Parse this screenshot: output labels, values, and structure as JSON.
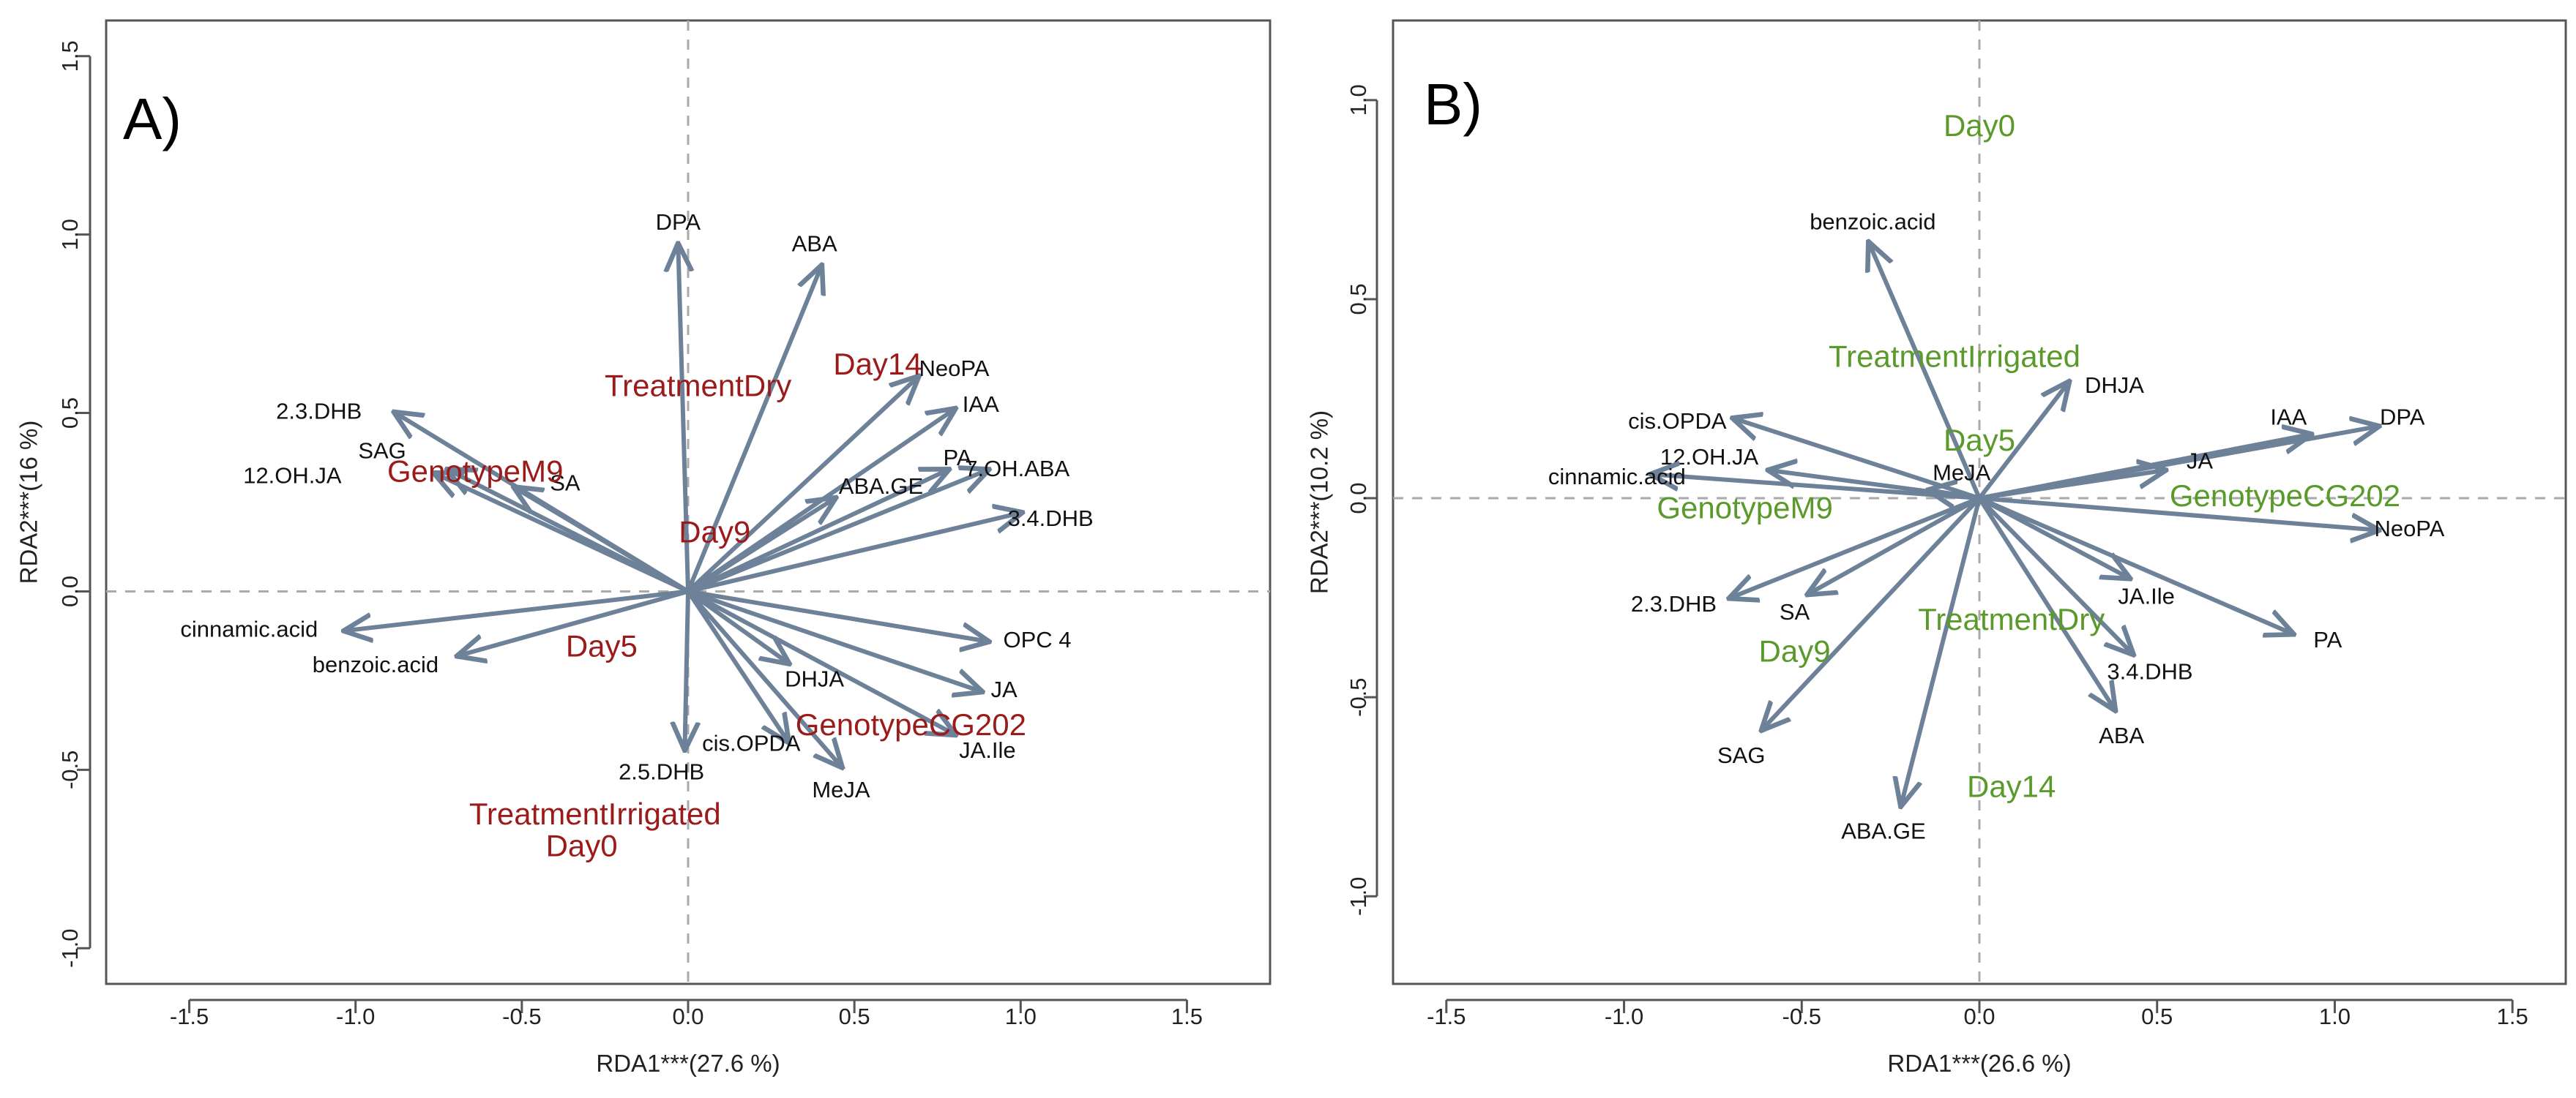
{
  "chart_data": [
    {
      "type": "biplot",
      "panel_label": "A)",
      "xlabel": "RDA1***(27.6 %)",
      "ylabel": "RDA2***(16 %)",
      "xlim": [
        -1.75,
        1.75
      ],
      "ylim": [
        -1.1,
        1.6
      ],
      "xticks": [
        -1.5,
        -1.0,
        -0.5,
        0.0,
        0.5,
        1.0,
        1.5
      ],
      "xtick_labels": [
        "-1.5",
        "-1.0",
        "-0.5",
        "0.0",
        "0.5",
        "1.0",
        "1.5"
      ],
      "yticks": [
        -1.0,
        -0.5,
        0.0,
        0.5,
        1.0,
        1.5
      ],
      "ytick_labels": [
        "-1.0",
        "-0.5",
        "0.0",
        "0.5",
        "1.0",
        "1.5"
      ],
      "factor_color": "#9b1b1b",
      "arrow_color": "#6d8199",
      "arrows": [
        {
          "name": "DPA",
          "x": -0.03,
          "y": 0.97,
          "lx": -0.03,
          "ly": 1.03
        },
        {
          "name": "ABA",
          "x": 0.4,
          "y": 0.91,
          "lx": 0.38,
          "ly": 0.97
        },
        {
          "name": "NeoPA",
          "x": 0.69,
          "y": 0.6,
          "lx": 0.8,
          "ly": 0.62
        },
        {
          "name": "IAA",
          "x": 0.8,
          "y": 0.51,
          "lx": 0.88,
          "ly": 0.52
        },
        {
          "name": "PA",
          "x": 0.78,
          "y": 0.34,
          "lx": 0.81,
          "ly": 0.37
        },
        {
          "name": "7.OH.ABA",
          "x": 0.9,
          "y": 0.34,
          "lx": 0.99,
          "ly": 0.34
        },
        {
          "name": "ABA.GE",
          "x": 0.44,
          "y": 0.26,
          "lx": 0.58,
          "ly": 0.29
        },
        {
          "name": "3.4.DHB",
          "x": 1.0,
          "y": 0.22,
          "lx": 1.09,
          "ly": 0.2
        },
        {
          "name": "2.3.DHB",
          "x": -0.88,
          "y": 0.5,
          "lx": -1.11,
          "ly": 0.5
        },
        {
          "name": "SAG",
          "x": -0.72,
          "y": 0.34,
          "lx": -0.92,
          "ly": 0.39
        },
        {
          "name": "SA",
          "x": -0.52,
          "y": 0.29,
          "lx": -0.37,
          "ly": 0.3
        },
        {
          "name": "12.OH.JA",
          "x": -0.76,
          "y": 0.33,
          "lx": -1.19,
          "ly": 0.32
        },
        {
          "name": "cinnamic.acid",
          "x": -1.03,
          "y": -0.11,
          "lx": -1.32,
          "ly": -0.11
        },
        {
          "name": "benzoic.acid",
          "x": -0.69,
          "y": -0.18,
          "lx": -0.94,
          "ly": -0.21
        },
        {
          "name": "OPC 4",
          "x": 0.9,
          "y": -0.14,
          "lx": 1.05,
          "ly": -0.14
        },
        {
          "name": "JA",
          "x": 0.88,
          "y": -0.28,
          "lx": 0.95,
          "ly": -0.28
        },
        {
          "name": "JA.Ile",
          "x": 0.8,
          "y": -0.4,
          "lx": 0.9,
          "ly": -0.45
        },
        {
          "name": "DHJA",
          "x": 0.3,
          "y": -0.2,
          "lx": 0.38,
          "ly": -0.25
        },
        {
          "name": "MeJA",
          "x": 0.46,
          "y": -0.49,
          "lx": 0.46,
          "ly": -0.56
        },
        {
          "name": "cis.OPDA",
          "x": 0.3,
          "y": -0.42,
          "lx": 0.19,
          "ly": -0.43
        },
        {
          "name": "2.5.DHB",
          "x": -0.01,
          "y": -0.44,
          "lx": -0.08,
          "ly": -0.51
        }
      ],
      "factors": [
        {
          "name": "TreatmentDry",
          "x": 0.03,
          "y": 0.57
        },
        {
          "name": "Day14",
          "x": 0.57,
          "y": 0.63
        },
        {
          "name": "GenotypeM9",
          "x": -0.64,
          "y": 0.33
        },
        {
          "name": "Day9",
          "x": 0.08,
          "y": 0.16
        },
        {
          "name": "Day5",
          "x": -0.26,
          "y": -0.16
        },
        {
          "name": "GenotypeCG202",
          "x": 0.67,
          "y": -0.38
        },
        {
          "name": "TreatmentIrrigated",
          "x": -0.28,
          "y": -0.63
        },
        {
          "name": "Day0",
          "x": -0.32,
          "y": -0.72
        }
      ]
    },
    {
      "type": "biplot",
      "panel_label": "B)",
      "xlabel": "RDA1***(26.6 %)",
      "ylabel": "RDA2***(10.2 %)",
      "xlim": [
        -1.65,
        1.65
      ],
      "ylim": [
        -1.22,
        1.2
      ],
      "xticks": [
        -1.5,
        -1.0,
        -0.5,
        0.0,
        0.5,
        1.0,
        1.5
      ],
      "xtick_labels": [
        "-1.5",
        "-1.0",
        "-0.5",
        "0.0",
        "0.5",
        "1.0",
        "1.5"
      ],
      "yticks": [
        -1.0,
        -0.5,
        0.0,
        0.5,
        1.0
      ],
      "ytick_labels": [
        "-1.0",
        "-0.5",
        "0.0",
        "0.5",
        "1.0"
      ],
      "factor_color": "#5a9a2a",
      "arrow_color": "#6d8199",
      "arrows": [
        {
          "name": "benzoic.acid",
          "x": -0.31,
          "y": 0.64,
          "lx": -0.3,
          "ly": 0.69
        },
        {
          "name": "DHJA",
          "x": 0.25,
          "y": 0.29,
          "lx": 0.38,
          "ly": 0.28
        },
        {
          "name": "IAA",
          "x": 0.93,
          "y": 0.16,
          "lx": 0.87,
          "ly": 0.2
        },
        {
          "name": "DPA",
          "x": 1.12,
          "y": 0.18,
          "lx": 1.19,
          "ly": 0.2
        },
        {
          "name": "JA",
          "x": 0.52,
          "y": 0.07,
          "lx": 0.62,
          "ly": 0.09
        },
        {
          "name": "NeoPA",
          "x": 1.12,
          "y": -0.08,
          "lx": 1.21,
          "ly": -0.08
        },
        {
          "name": "JA.Ile",
          "x": 0.42,
          "y": -0.2,
          "lx": 0.47,
          "ly": -0.25
        },
        {
          "name": "PA",
          "x": 0.88,
          "y": -0.34,
          "lx": 0.98,
          "ly": -0.36
        },
        {
          "name": "3.4.DHB",
          "x": 0.43,
          "y": -0.39,
          "lx": 0.48,
          "ly": -0.44
        },
        {
          "name": "ABA",
          "x": 0.38,
          "y": -0.53,
          "lx": 0.4,
          "ly": -0.6
        },
        {
          "name": "ABA.GE",
          "x": -0.22,
          "y": -0.77,
          "lx": -0.27,
          "ly": -0.84
        },
        {
          "name": "SAG",
          "x": -0.61,
          "y": -0.58,
          "lx": -0.67,
          "ly": -0.65
        },
        {
          "name": "SA",
          "x": -0.48,
          "y": -0.24,
          "lx": -0.52,
          "ly": -0.29
        },
        {
          "name": "2.3.DHB",
          "x": -0.7,
          "y": -0.25,
          "lx": -0.86,
          "ly": -0.27
        },
        {
          "name": "cis.OPDA",
          "x": -0.69,
          "y": 0.2,
          "lx": -0.85,
          "ly": 0.19
        },
        {
          "name": "12.OH.JA",
          "x": -0.59,
          "y": 0.07,
          "lx": -0.76,
          "ly": 0.1
        },
        {
          "name": "cinnamic.acid",
          "x": -0.92,
          "y": 0.06,
          "lx": -1.02,
          "ly": 0.05
        },
        {
          "name": "MeJA",
          "x": -0.14,
          "y": 0.02,
          "lx": -0.05,
          "ly": 0.06
        }
      ],
      "factors": [
        {
          "name": "Day0",
          "x": 0.0,
          "y": 0.93
        },
        {
          "name": "TreatmentIrrigated",
          "x": -0.07,
          "y": 0.35
        },
        {
          "name": "Day5",
          "x": 0.0,
          "y": 0.14
        },
        {
          "name": "GenotypeM9",
          "x": -0.66,
          "y": -0.03
        },
        {
          "name": "GenotypeCG202",
          "x": 0.86,
          "y": 0.0
        },
        {
          "name": "TreatmentDry",
          "x": 0.09,
          "y": -0.31
        },
        {
          "name": "Day9",
          "x": -0.52,
          "y": -0.39
        },
        {
          "name": "Day14",
          "x": 0.09,
          "y": -0.73
        }
      ]
    }
  ]
}
